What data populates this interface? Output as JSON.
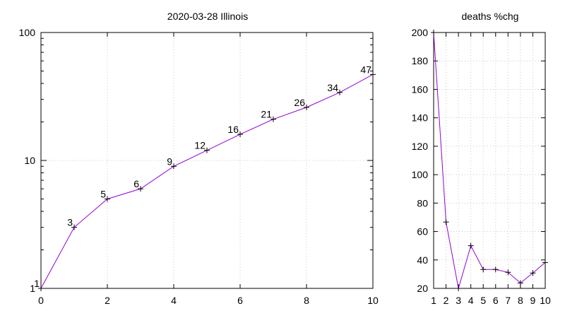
{
  "chart_data": [
    {
      "type": "line",
      "title": "2020-03-28 Illinois",
      "xlabel": "",
      "ylabel": "",
      "yscale": "log",
      "xlim": [
        0,
        10
      ],
      "ylim": [
        1,
        100
      ],
      "x_ticks": [
        0,
        2,
        4,
        6,
        8,
        10
      ],
      "y_ticks": [
        1,
        10,
        100
      ],
      "grid": true,
      "series_color": "#9400d3",
      "series": [
        {
          "x": [
            0,
            1,
            2,
            3,
            4,
            5,
            6,
            7,
            8,
            9,
            10
          ],
          "values": [
            1,
            3,
            5,
            6,
            9,
            12,
            16,
            21,
            26,
            34,
            47
          ],
          "labels": [
            "1",
            "3",
            "5",
            "6",
            "9",
            "12",
            "16",
            "21",
            "26",
            "34",
            "47"
          ]
        }
      ]
    },
    {
      "type": "line",
      "title": "deaths %chg",
      "xlabel": "",
      "ylabel": "",
      "xlim": [
        1,
        10
      ],
      "ylim": [
        20,
        200
      ],
      "x_ticks": [
        1,
        2,
        3,
        4,
        5,
        6,
        7,
        8,
        9,
        10
      ],
      "y_ticks": [
        20,
        40,
        60,
        80,
        100,
        120,
        140,
        160,
        180,
        200
      ],
      "grid": true,
      "series_color": "#9400d3",
      "series": [
        {
          "x": [
            1,
            2,
            3,
            4,
            5,
            6,
            7,
            8,
            9,
            10
          ],
          "values": [
            200,
            66.7,
            20,
            50,
            33.3,
            33.3,
            31.3,
            23.8,
            30.8,
            38.2
          ]
        }
      ]
    }
  ]
}
